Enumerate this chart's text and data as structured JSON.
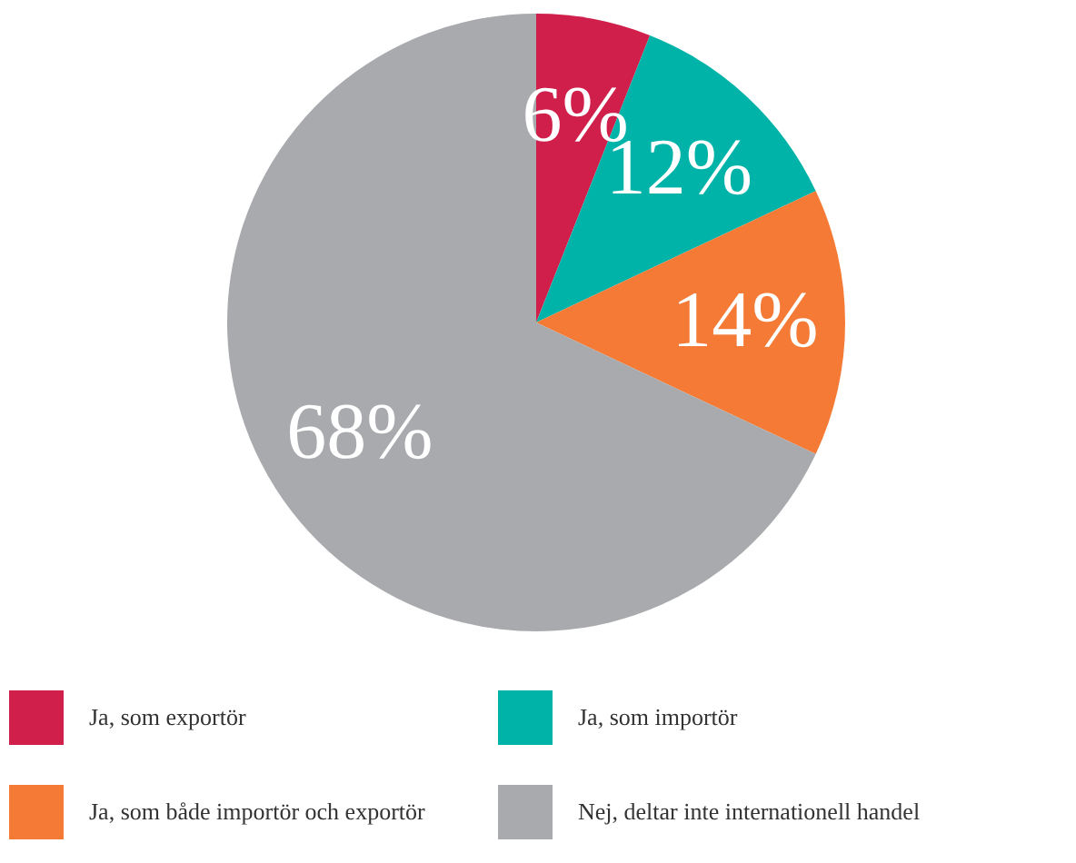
{
  "chart_data": {
    "type": "pie",
    "categories": [
      "Ja, som exportör",
      "Ja, som importör",
      "Ja, som både importör och exportör",
      "Nej, deltar inte internationell handel"
    ],
    "values": [
      6,
      12,
      14,
      68
    ],
    "colors": [
      "#d01f4b",
      "#00b3a8",
      "#f47a35",
      "#a8aaad"
    ],
    "value_labels": [
      "6%",
      "12%",
      "14%",
      "68%"
    ],
    "legend": "bottom"
  }
}
